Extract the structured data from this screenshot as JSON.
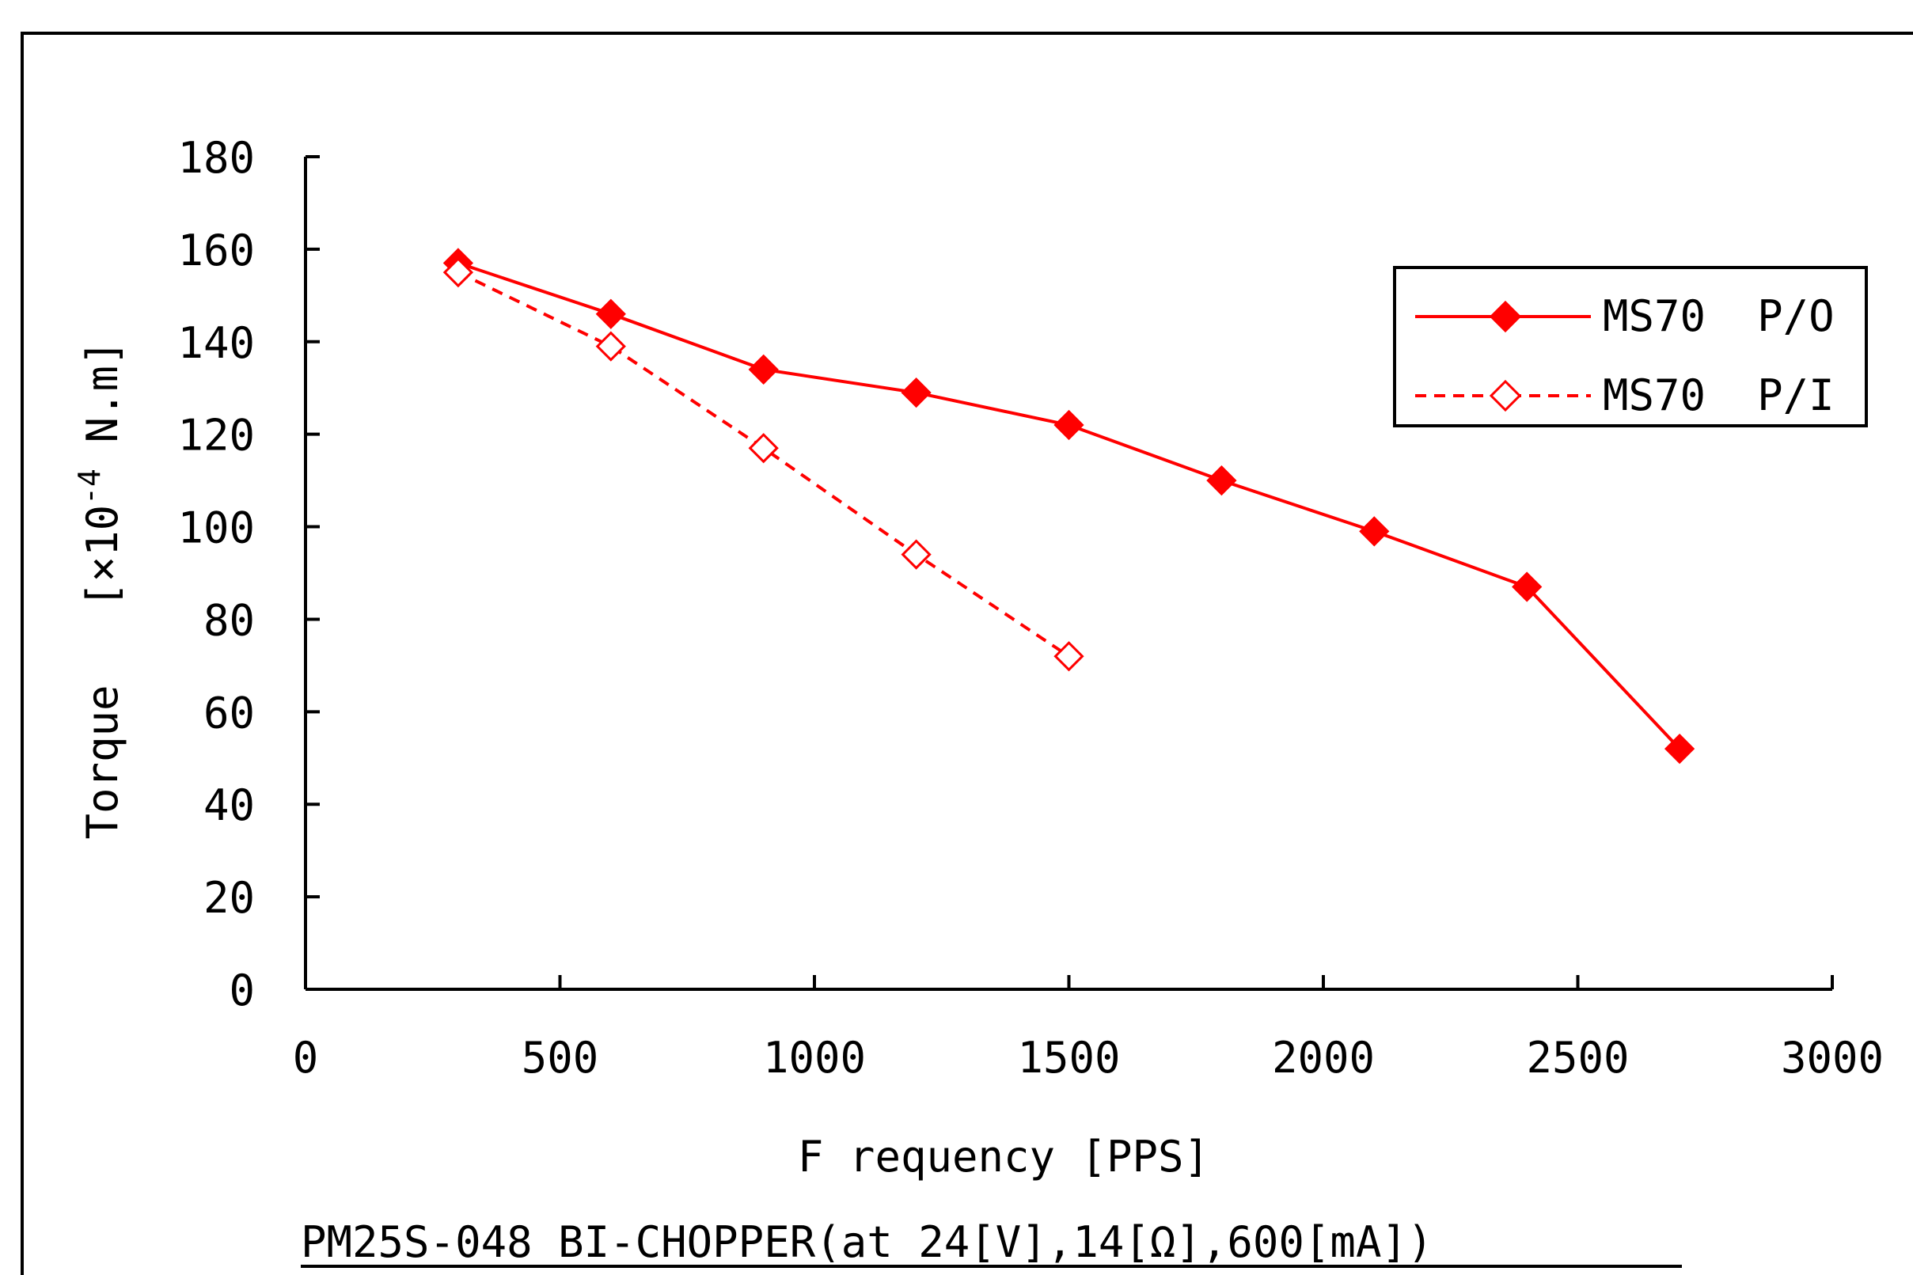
{
  "chart_data": {
    "type": "line",
    "xlabel": "F requency  [PPS]",
    "ylabel": {
      "main": "Torque",
      "unit_prefix": "[×10",
      "exponent": "-4",
      "unit_suffix": " N.m]"
    },
    "caption": "PM25S-048 BI-CHOPPER(at 24[V],14[Ω],600[mA])",
    "xlim": [
      0,
      3000
    ],
    "ylim": [
      0,
      180
    ],
    "x_ticks": [
      "0",
      "500",
      "1000",
      "1500",
      "2000",
      "2500",
      "3000"
    ],
    "y_ticks": [
      "0",
      "20",
      "40",
      "60",
      "80",
      "100",
      "120",
      "140",
      "160",
      "180"
    ],
    "grid": false,
    "legend_position": "top-right",
    "series": [
      {
        "name": "MS70  P/O",
        "color": "#ff0000",
        "line_style": "solid",
        "marker": "filled-diamond",
        "x": [
          300,
          600,
          900,
          1200,
          1500,
          1800,
          2100,
          2400,
          2700
        ],
        "y": [
          157,
          146,
          134,
          129,
          122,
          110,
          99,
          87,
          52
        ]
      },
      {
        "name": "MS70  P/I",
        "color": "#ff0000",
        "line_style": "dashed",
        "marker": "hollow-diamond",
        "x": [
          300,
          600,
          900,
          1200,
          1500
        ],
        "y": [
          155,
          139,
          117,
          94,
          72
        ]
      }
    ]
  }
}
